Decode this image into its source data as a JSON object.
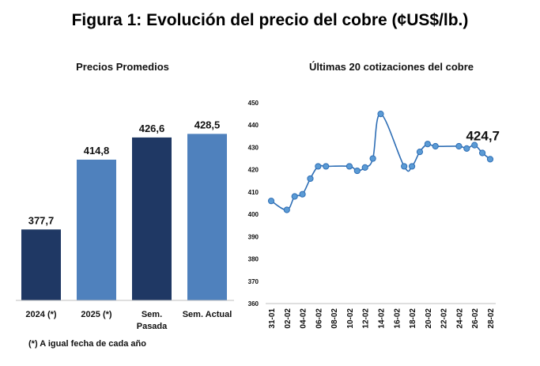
{
  "title": "Figura 1: Evolución del precio del cobre (¢US$/lb.)",
  "footnote": "(*) A igual fecha de cada año",
  "colors": {
    "dark_navy": "#1f3864",
    "medium_blue": "#4f81bd",
    "line": "#2e6eb5"
  },
  "chart_data": [
    {
      "type": "bar",
      "title": "Precios Promedios",
      "categories": [
        "2024 (*)",
        "2025 (*)",
        "Sem. Pasada",
        "Sem. Actual"
      ],
      "category_lines": [
        [
          "2024 (*)"
        ],
        [
          "2025 (*)"
        ],
        [
          "Sem.",
          "Pasada"
        ],
        [
          "Sem. Actual"
        ]
      ],
      "values": [
        377.7,
        414.8,
        426.6,
        428.5
      ],
      "value_labels": [
        "377,7",
        "414,8",
        "426,6",
        "428,5"
      ],
      "bar_colors": [
        "#1f3864",
        "#4f81bd",
        "#1f3864",
        "#4f81bd"
      ],
      "ylim": [
        340,
        440
      ]
    },
    {
      "type": "line",
      "title": "Últimas 20 cotizaciones del cobre",
      "x": [
        "31-01",
        "02-02",
        "03-02",
        "04-02",
        "05-02",
        "06-02",
        "07-02",
        "10-02",
        "11-02",
        "12-02",
        "13-02",
        "14-02",
        "17-02",
        "18-02",
        "19-02",
        "20-02",
        "21-02",
        "24-02",
        "25-02",
        "26-02",
        "27-02",
        "28-02"
      ],
      "values": [
        406,
        402,
        408,
        409,
        416,
        421.5,
        421.5,
        421.5,
        419.5,
        421,
        425,
        445,
        421.5,
        421.5,
        428,
        431.5,
        430.5,
        430.5,
        429.5,
        431,
        427.5,
        424.7
      ],
      "x_tick_labels": [
        "31-01",
        "02-02",
        "04-02",
        "06-02",
        "08-02",
        "10-02",
        "12-02",
        "14-02",
        "16-02",
        "18-02",
        "20-02",
        "22-02",
        "24-02",
        "26-02",
        "28-02"
      ],
      "ylim": [
        360,
        450
      ],
      "yticks": [
        360,
        370,
        380,
        390,
        400,
        410,
        420,
        430,
        440,
        450
      ],
      "last_value_label": "424,7",
      "grid": false
    }
  ]
}
